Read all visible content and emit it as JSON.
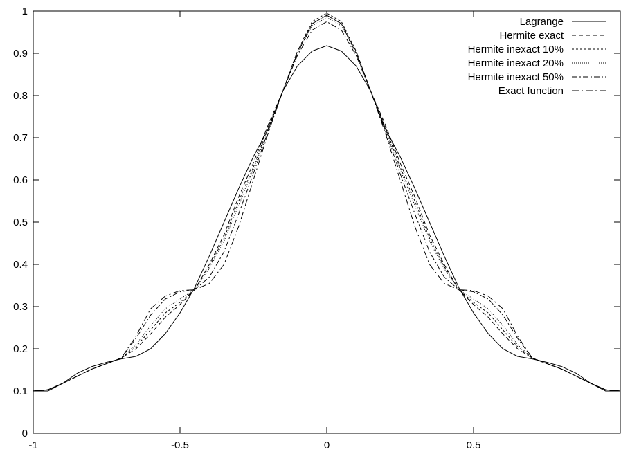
{
  "chart_data": {
    "type": "line",
    "title": "",
    "xlabel": "",
    "ylabel": "",
    "xlim": [
      -1,
      1
    ],
    "ylim": [
      0,
      1
    ],
    "grid": false,
    "legend_position": "top-right",
    "x_ticks": [
      {
        "value": -1,
        "label": "-1"
      },
      {
        "value": -0.5,
        "label": "-0.5"
      },
      {
        "value": 0,
        "label": "0"
      },
      {
        "value": 0.5,
        "label": "0.5"
      }
    ],
    "y_ticks": [
      {
        "value": 0,
        "label": "0"
      },
      {
        "value": 0.1,
        "label": "0.1"
      },
      {
        "value": 0.2,
        "label": "0.2"
      },
      {
        "value": 0.3,
        "label": "0.3"
      },
      {
        "value": 0.4,
        "label": "0.4"
      },
      {
        "value": 0.5,
        "label": "0.5"
      },
      {
        "value": 0.6,
        "label": "0.6"
      },
      {
        "value": 0.7,
        "label": "0.7"
      },
      {
        "value": 0.8,
        "label": "0.8"
      },
      {
        "value": 0.9,
        "label": "0.9"
      },
      {
        "value": 1,
        "label": "1"
      }
    ],
    "series": [
      {
        "name": "Lagrange",
        "dash": "",
        "x": [
          -1,
          -0.95,
          -0.9,
          -0.85,
          -0.8,
          -0.75,
          -0.7,
          -0.65,
          -0.6,
          -0.55,
          -0.5,
          -0.45,
          -0.4,
          -0.35,
          -0.3,
          -0.25,
          -0.2,
          -0.15,
          -0.1,
          -0.05,
          0,
          0.05,
          0.1,
          0.15,
          0.2,
          0.25,
          0.3,
          0.35,
          0.4,
          0.45,
          0.5,
          0.55,
          0.6,
          0.65,
          0.7,
          0.75,
          0.8,
          0.85,
          0.9,
          0.95,
          1
        ],
        "y": [
          0.1,
          0.1,
          0.118,
          0.142,
          0.158,
          0.168,
          0.176,
          0.182,
          0.2,
          0.236,
          0.285,
          0.345,
          0.42,
          0.5,
          0.58,
          0.655,
          0.72,
          0.81,
          0.87,
          0.905,
          0.918,
          0.905,
          0.87,
          0.81,
          0.72,
          0.655,
          0.58,
          0.5,
          0.42,
          0.345,
          0.285,
          0.236,
          0.2,
          0.182,
          0.176,
          0.168,
          0.158,
          0.142,
          0.118,
          0.1,
          0.1
        ]
      },
      {
        "name": "Hermite exact",
        "dash": "6,4",
        "x": [
          -1,
          -0.95,
          -0.9,
          -0.85,
          -0.8,
          -0.75,
          -0.7,
          -0.65,
          -0.6,
          -0.55,
          -0.5,
          -0.45,
          -0.4,
          -0.35,
          -0.3,
          -0.25,
          -0.2,
          -0.15,
          -0.1,
          -0.05,
          0,
          0.05,
          0.1,
          0.15,
          0.2,
          0.25,
          0.3,
          0.35,
          0.4,
          0.45,
          0.5,
          0.55,
          0.6,
          0.65,
          0.7,
          0.75,
          0.8,
          0.85,
          0.9,
          0.95,
          1
        ],
        "y": [
          0.1,
          0.103,
          0.118,
          0.135,
          0.152,
          0.165,
          0.178,
          0.2,
          0.235,
          0.275,
          0.305,
          0.34,
          0.4,
          0.47,
          0.56,
          0.64,
          0.73,
          0.81,
          0.905,
          0.97,
          0.99,
          0.97,
          0.905,
          0.81,
          0.73,
          0.64,
          0.56,
          0.47,
          0.4,
          0.34,
          0.305,
          0.275,
          0.235,
          0.2,
          0.178,
          0.165,
          0.152,
          0.135,
          0.118,
          0.103,
          0.1
        ]
      },
      {
        "name": "Hermite inexact 10%",
        "dash": "3,3",
        "x": [
          -1,
          -0.95,
          -0.9,
          -0.85,
          -0.8,
          -0.75,
          -0.7,
          -0.65,
          -0.6,
          -0.55,
          -0.5,
          -0.45,
          -0.4,
          -0.35,
          -0.3,
          -0.25,
          -0.2,
          -0.15,
          -0.1,
          -0.05,
          0,
          0.05,
          0.1,
          0.15,
          0.2,
          0.25,
          0.3,
          0.35,
          0.4,
          0.45,
          0.5,
          0.55,
          0.6,
          0.65,
          0.7,
          0.75,
          0.8,
          0.85,
          0.9,
          0.95,
          1
        ],
        "y": [
          0.1,
          0.103,
          0.118,
          0.135,
          0.152,
          0.165,
          0.178,
          0.205,
          0.245,
          0.285,
          0.31,
          0.34,
          0.395,
          0.462,
          0.55,
          0.63,
          0.725,
          0.81,
          0.905,
          0.975,
          0.995,
          0.975,
          0.905,
          0.81,
          0.725,
          0.63,
          0.55,
          0.462,
          0.395,
          0.34,
          0.31,
          0.285,
          0.245,
          0.205,
          0.178,
          0.165,
          0.152,
          0.135,
          0.118,
          0.103,
          0.1
        ]
      },
      {
        "name": "Hermite inexact 20%",
        "dash": "1,2",
        "x": [
          -1,
          -0.95,
          -0.9,
          -0.85,
          -0.8,
          -0.75,
          -0.7,
          -0.65,
          -0.6,
          -0.55,
          -0.5,
          -0.45,
          -0.4,
          -0.35,
          -0.3,
          -0.25,
          -0.2,
          -0.15,
          -0.1,
          -0.05,
          0,
          0.05,
          0.1,
          0.15,
          0.2,
          0.25,
          0.3,
          0.35,
          0.4,
          0.45,
          0.5,
          0.55,
          0.6,
          0.65,
          0.7,
          0.75,
          0.8,
          0.85,
          0.9,
          0.95,
          1
        ],
        "y": [
          0.1,
          0.103,
          0.118,
          0.135,
          0.152,
          0.165,
          0.178,
          0.21,
          0.255,
          0.295,
          0.318,
          0.34,
          0.39,
          0.455,
          0.54,
          0.625,
          0.72,
          0.81,
          0.9,
          0.965,
          0.985,
          0.965,
          0.9,
          0.81,
          0.72,
          0.625,
          0.54,
          0.455,
          0.39,
          0.34,
          0.318,
          0.295,
          0.255,
          0.21,
          0.178,
          0.165,
          0.152,
          0.135,
          0.118,
          0.103,
          0.1
        ]
      },
      {
        "name": "Hermite inexact 50%",
        "dash": "8,3,2,3",
        "x": [
          -1,
          -0.95,
          -0.9,
          -0.85,
          -0.8,
          -0.75,
          -0.7,
          -0.65,
          -0.6,
          -0.55,
          -0.5,
          -0.45,
          -0.4,
          -0.35,
          -0.3,
          -0.25,
          -0.2,
          -0.15,
          -0.1,
          -0.05,
          0,
          0.05,
          0.1,
          0.15,
          0.2,
          0.25,
          0.3,
          0.35,
          0.4,
          0.45,
          0.5,
          0.55,
          0.6,
          0.65,
          0.7,
          0.75,
          0.8,
          0.85,
          0.9,
          0.95,
          1
        ],
        "y": [
          0.1,
          0.103,
          0.118,
          0.135,
          0.152,
          0.165,
          0.178,
          0.225,
          0.28,
          0.318,
          0.335,
          0.34,
          0.37,
          0.43,
          0.52,
          0.615,
          0.715,
          0.81,
          0.895,
          0.955,
          0.975,
          0.955,
          0.895,
          0.81,
          0.715,
          0.615,
          0.52,
          0.43,
          0.37,
          0.34,
          0.335,
          0.318,
          0.28,
          0.225,
          0.178,
          0.165,
          0.152,
          0.135,
          0.118,
          0.103,
          0.1
        ]
      },
      {
        "name": "Exact function",
        "dash": "10,4,2,4",
        "x": [
          -1,
          -0.95,
          -0.9,
          -0.85,
          -0.8,
          -0.75,
          -0.7,
          -0.65,
          -0.6,
          -0.55,
          -0.5,
          -0.45,
          -0.4,
          -0.35,
          -0.3,
          -0.25,
          -0.2,
          -0.15,
          -0.1,
          -0.05,
          0,
          0.05,
          0.1,
          0.15,
          0.2,
          0.25,
          0.3,
          0.35,
          0.4,
          0.45,
          0.5,
          0.55,
          0.6,
          0.65,
          0.7,
          0.75,
          0.8,
          0.85,
          0.9,
          0.95,
          1
        ],
        "y": [
          0.1,
          0.103,
          0.118,
          0.135,
          0.152,
          0.165,
          0.178,
          0.23,
          0.295,
          0.325,
          0.338,
          0.34,
          0.355,
          0.4,
          0.49,
          0.6,
          0.71,
          0.81,
          0.9,
          0.97,
          0.99,
          0.97,
          0.9,
          0.81,
          0.71,
          0.6,
          0.49,
          0.4,
          0.355,
          0.34,
          0.338,
          0.325,
          0.295,
          0.23,
          0.178,
          0.165,
          0.152,
          0.135,
          0.118,
          0.103,
          0.1
        ]
      }
    ]
  }
}
